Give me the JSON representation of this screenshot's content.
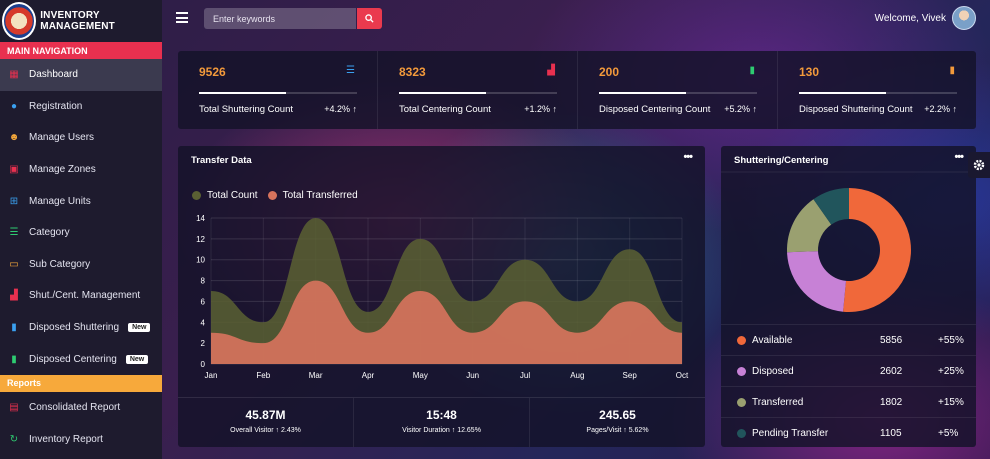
{
  "brand": {
    "name": "INVENTORY MANAGEMENT"
  },
  "sidebar": {
    "main_heading": "MAIN NAVIGATION",
    "items": [
      {
        "label": "Dashboard",
        "icon": "dashboard-icon",
        "active": true,
        "color": "#e8304f"
      },
      {
        "label": "Registration",
        "icon": "user-circle-icon",
        "color": "#3aa0f0"
      },
      {
        "label": "Manage Users",
        "icon": "smile-icon",
        "color": "#f7a93b"
      },
      {
        "label": "Manage Zones",
        "icon": "map-icon",
        "color": "#e8304f"
      },
      {
        "label": "Manage Units",
        "icon": "sitemap-icon",
        "color": "#3aa0f0"
      },
      {
        "label": "Category",
        "icon": "list-icon",
        "color": "#2ecc71"
      },
      {
        "label": "Sub Category",
        "icon": "card-icon",
        "color": "#f7a93b"
      },
      {
        "label": "Shut./Cent. Management",
        "icon": "bar-chart-icon",
        "color": "#e8304f"
      },
      {
        "label": "Disposed Shuttering",
        "icon": "trash-icon",
        "color": "#3aa0f0",
        "badge": "New"
      },
      {
        "label": "Disposed Centering",
        "icon": "trash-icon",
        "color": "#2ecc71",
        "badge": "New"
      }
    ],
    "reports_heading": "Reports",
    "reports": [
      {
        "label": "Consolidated Report",
        "icon": "file-icon",
        "color": "#e8304f"
      },
      {
        "label": "Inventory Report",
        "icon": "refresh-icon",
        "color": "#2ecc71"
      }
    ]
  },
  "header": {
    "search_placeholder": "Enter keywords",
    "welcome": "Welcome, Vivek"
  },
  "stats": [
    {
      "value": "9526",
      "label": "Total Shuttering Count",
      "change": "+4.2%",
      "icon": "list-icon",
      "icon_color": "#3aa0f0",
      "progress": 0.55
    },
    {
      "value": "8323",
      "label": "Total Centering Count",
      "change": "+1.2%",
      "icon": "industry-icon",
      "icon_color": "#e8304f",
      "progress": 0.55
    },
    {
      "value": "200",
      "label": "Disposed Centering Count",
      "change": "+5.2%",
      "icon": "trash-icon",
      "icon_color": "#2ecc71",
      "progress": 0.55
    },
    {
      "value": "130",
      "label": "Disposed Shuttering Count",
      "change": "+2.2%",
      "icon": "trash-icon",
      "icon_color": "#f39a3b",
      "progress": 0.55
    }
  ],
  "transfer": {
    "title": "Transfer Data",
    "footer": [
      {
        "value": "45.87M",
        "label": "Overall Visitor",
        "change": "2.43%"
      },
      {
        "value": "15:48",
        "label": "Visitor Duration",
        "change": "12.65%"
      },
      {
        "value": "245.65",
        "label": "Pages/Visit",
        "change": "5.62%"
      }
    ]
  },
  "donut": {
    "title": "Shuttering/Centering",
    "rows": [
      {
        "label": "Available",
        "value": "5856",
        "change": "+55%",
        "color": "#f0683a"
      },
      {
        "label": "Disposed",
        "value": "2602",
        "change": "+25%",
        "color": "#c781d6"
      },
      {
        "label": "Transferred",
        "value": "1802",
        "change": "+15%",
        "color": "#9aa070"
      },
      {
        "label": "Pending Transfer",
        "value": "1105",
        "change": "+5%",
        "color": "#21555c"
      }
    ]
  },
  "chart_data": [
    {
      "type": "area",
      "x": [
        "Jan",
        "Feb",
        "Mar",
        "Apr",
        "May",
        "Jun",
        "Jul",
        "Aug",
        "Sep",
        "Oct"
      ],
      "series": [
        {
          "name": "Total Count",
          "color": "#5a6033",
          "values": [
            7,
            4,
            14,
            5,
            12,
            6,
            10,
            6,
            11,
            4
          ]
        },
        {
          "name": "Total Transferred",
          "color": "#d6735c",
          "values": [
            3,
            2,
            8,
            3,
            7,
            3,
            6,
            3,
            6,
            3
          ]
        }
      ],
      "ylim": [
        0,
        14
      ],
      "yticks": [
        0,
        2,
        4,
        6,
        8,
        10,
        12,
        14
      ],
      "grid": true,
      "legend": "top-left"
    },
    {
      "type": "pie",
      "categories": [
        "Available",
        "Disposed",
        "Transferred",
        "Pending Transfer"
      ],
      "values": [
        5856,
        2602,
        1802,
        1105
      ],
      "colors": [
        "#f0683a",
        "#c781d6",
        "#9aa070",
        "#21555c"
      ]
    }
  ]
}
